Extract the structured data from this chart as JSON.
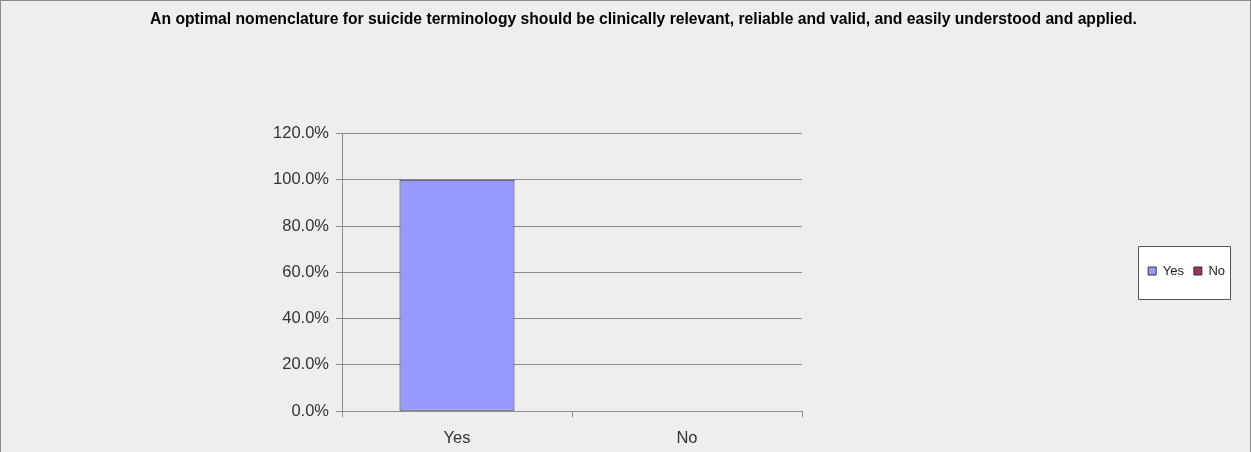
{
  "chart_data": {
    "type": "bar",
    "title": "An optimal nomenclature for suicide terminology should be clinically relevant, reliable and valid, and easily understood and applied.",
    "categories": [
      "Yes",
      "No"
    ],
    "series": [
      {
        "name": "Yes",
        "color": "#9999ff",
        "values": [
          100,
          null
        ]
      },
      {
        "name": "No",
        "color": "#993366",
        "values": [
          null,
          0
        ]
      }
    ],
    "ylim": [
      0,
      120
    ],
    "yticks": [
      {
        "value": 0,
        "label": "0.0%"
      },
      {
        "value": 20,
        "label": "20.0%"
      },
      {
        "value": 40,
        "label": "40.0%"
      },
      {
        "value": 60,
        "label": "60.0%"
      },
      {
        "value": 80,
        "label": "80.0%"
      },
      {
        "value": 100,
        "label": "100.0%"
      },
      {
        "value": 120,
        "label": "120.0%"
      }
    ],
    "grid": "y",
    "legend": "right"
  }
}
